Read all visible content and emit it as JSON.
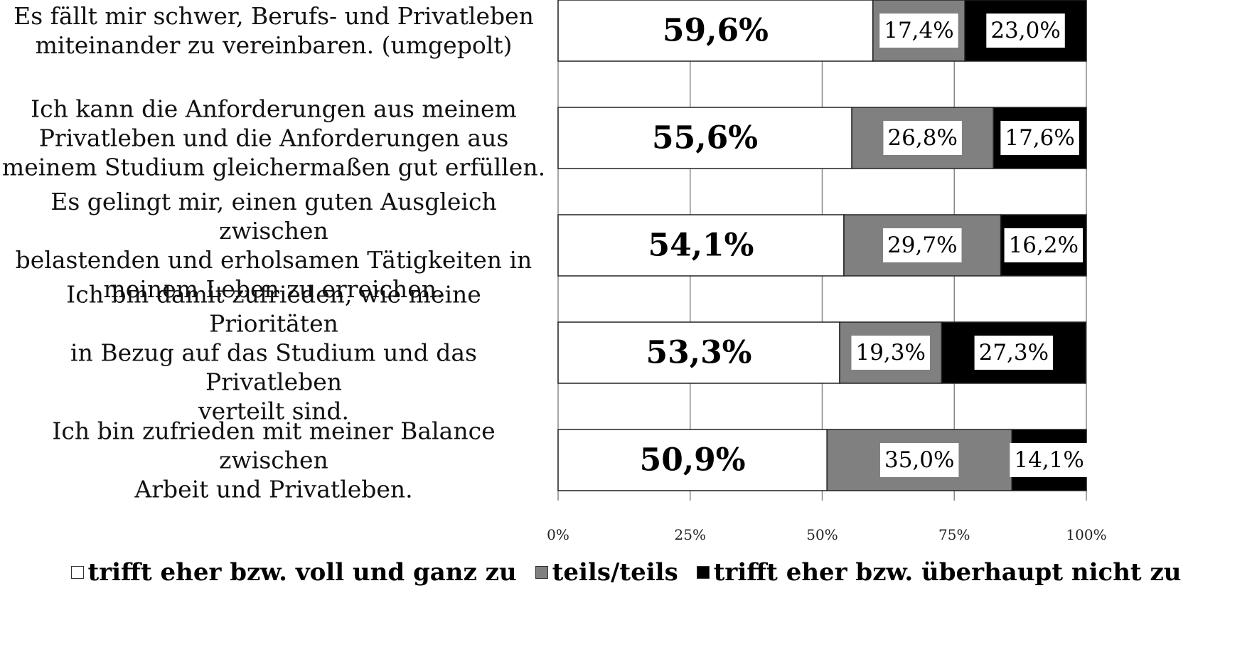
{
  "chart_data": {
    "type": "stacked_barh",
    "categories": [
      "Es fällt mir schwer, Berufs- und Privatleben\nmiteinander zu vereinbaren. (umgepolt)",
      "Ich kann die Anforderungen aus meinem\nPrivatleben und die Anforderungen aus\nmeinem Studium gleichermaßen gut erfüllen.",
      "Es gelingt mir, einen guten Ausgleich zwischen\nbelastenden und erholsamen Tätigkeiten in\nmeinem Leben zu erreichen.",
      "Ich bin damit zufrieden, wie meine Prioritäten\nin Bezug auf das Studium und das Privatleben\nverteilt sind.",
      "Ich bin zufrieden mit meiner Balance zwischen\nArbeit und Privatleben."
    ],
    "series": [
      {
        "name": "trifft eher bzw. voll und ganz zu",
        "color": "#ffffff",
        "values": [
          59.6,
          55.6,
          54.1,
          53.3,
          50.9
        ],
        "value_labels": [
          "59,6%",
          "55,6%",
          "54,1%",
          "53,3%",
          "50,9%"
        ]
      },
      {
        "name": "teils/teils",
        "color": "#808080",
        "values": [
          17.4,
          26.8,
          29.7,
          19.3,
          35.0
        ],
        "value_labels": [
          "17,4%",
          "26,8%",
          "29,7%",
          "19,3%",
          "35,0%"
        ]
      },
      {
        "name": "trifft eher bzw. überhaupt nicht zu",
        "color": "#000000",
        "values": [
          23.0,
          17.6,
          16.2,
          27.3,
          14.1
        ],
        "value_labels": [
          "23,0%",
          "17,6%",
          "16,2%",
          "27,3%",
          "14,1%"
        ]
      }
    ],
    "xlim": [
      0,
      100
    ],
    "xticks": [
      {
        "value": 0,
        "label": "0%"
      },
      {
        "value": 25,
        "label": "25%"
      },
      {
        "value": 50,
        "label": "50%"
      },
      {
        "value": 75,
        "label": "75%"
      },
      {
        "value": 100,
        "label": "100%"
      }
    ],
    "grid": true
  }
}
